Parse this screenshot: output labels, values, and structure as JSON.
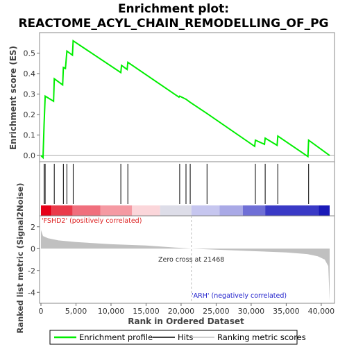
{
  "chart_data": {
    "type": "line",
    "title_line1": "Enrichment plot:",
    "title_line2": "REACTOME_ACYL_CHAIN_REMODELLING_OF_PG",
    "xlabel": "Rank in Ordered Dataset",
    "es_panel": {
      "ylabel": "Enrichment score (ES)",
      "ylim": [
        -0.03,
        0.6
      ],
      "yticks": [
        "0.0",
        "0.1",
        "0.2",
        "0.3",
        "0.4",
        "0.5"
      ],
      "ytick_values": [
        0.0,
        0.1,
        0.2,
        0.3,
        0.4,
        0.5
      ],
      "profile_color": "#00ee00",
      "profile": [
        {
          "x": 0,
          "y": 0.0
        },
        {
          "x": 300,
          "y": -0.01
        },
        {
          "x": 450,
          "y": 0.15
        },
        {
          "x": 600,
          "y": 0.29
        },
        {
          "x": 1800,
          "y": 0.265
        },
        {
          "x": 1900,
          "y": 0.375
        },
        {
          "x": 3100,
          "y": 0.345
        },
        {
          "x": 3200,
          "y": 0.43
        },
        {
          "x": 3500,
          "y": 0.425
        },
        {
          "x": 3700,
          "y": 0.51
        },
        {
          "x": 4500,
          "y": 0.49
        },
        {
          "x": 4600,
          "y": 0.56
        },
        {
          "x": 11400,
          "y": 0.405
        },
        {
          "x": 11500,
          "y": 0.44
        },
        {
          "x": 12300,
          "y": 0.42
        },
        {
          "x": 12400,
          "y": 0.455
        },
        {
          "x": 19700,
          "y": 0.285
        },
        {
          "x": 19800,
          "y": 0.29
        },
        {
          "x": 20700,
          "y": 0.275
        },
        {
          "x": 21300,
          "y": 0.26
        },
        {
          "x": 23700,
          "y": 0.205
        },
        {
          "x": 30500,
          "y": 0.045
        },
        {
          "x": 30600,
          "y": 0.075
        },
        {
          "x": 31900,
          "y": 0.055
        },
        {
          "x": 32000,
          "y": 0.085
        },
        {
          "x": 33700,
          "y": 0.05
        },
        {
          "x": 33800,
          "y": 0.095
        },
        {
          "x": 38100,
          "y": -0.005
        },
        {
          "x": 38200,
          "y": 0.075
        },
        {
          "x": 41200,
          "y": 0.0
        }
      ]
    },
    "hits": [
      450,
      600,
      1900,
      3200,
      3700,
      4600,
      11400,
      12400,
      19800,
      20700,
      21300,
      23700,
      30600,
      32000,
      33800,
      38200
    ],
    "heatmap_colors": [
      "#e60018",
      "#ea3a4a",
      "#f06f7d",
      "#f59aa3",
      "#fbd6da",
      "#dddde8",
      "#c6c6ef",
      "#a9a9e6",
      "#6f6fd6",
      "#3a3ac6",
      "#1a1ab8"
    ],
    "heatmap_bounds": [
      0,
      1500,
      4500,
      8500,
      13000,
      17000,
      21468,
      25500,
      28800,
      32000,
      39600,
      41200
    ],
    "metric_panel": {
      "ylabel": "Ranked list metric (Signal2Noise)",
      "ylim": [
        -5,
        3
      ],
      "yticks": [
        "2",
        "0",
        "-2",
        "-4"
      ],
      "ytick_values": [
        2,
        0,
        -2,
        -4
      ],
      "curve": [
        {
          "x": 0,
          "y": 1.7
        },
        {
          "x": 300,
          "y": 1.15
        },
        {
          "x": 1000,
          "y": 0.95
        },
        {
          "x": 2500,
          "y": 0.75
        },
        {
          "x": 5000,
          "y": 0.6
        },
        {
          "x": 10000,
          "y": 0.4
        },
        {
          "x": 15000,
          "y": 0.28
        },
        {
          "x": 21468,
          "y": 0.0
        },
        {
          "x": 25000,
          "y": -0.1
        },
        {
          "x": 30000,
          "y": -0.22
        },
        {
          "x": 35000,
          "y": -0.35
        },
        {
          "x": 38000,
          "y": -0.5
        },
        {
          "x": 39500,
          "y": -0.7
        },
        {
          "x": 40500,
          "y": -1.0
        },
        {
          "x": 41000,
          "y": -1.6
        },
        {
          "x": 41200,
          "y": -4.8
        }
      ],
      "zero_cross_label": "Zero cross at 21468",
      "zero_cross_x": 21468,
      "positive_label": "'FSHD2' (positively correlated)",
      "negative_label": "'ARH' (negatively correlated)",
      "positive_color": "#dd2222",
      "negative_color": "#2222cc"
    },
    "xlim": [
      0,
      41200
    ],
    "xticks": [
      "0",
      "5,000",
      "10,000",
      "15,000",
      "20,000",
      "25,000",
      "30,000",
      "35,000",
      "40,000"
    ],
    "xtick_values": [
      0,
      5000,
      10000,
      15000,
      20000,
      25000,
      30000,
      35000,
      40000
    ],
    "legend": {
      "items": [
        {
          "label": "Enrichment profile",
          "color": "#00ee00"
        },
        {
          "label": "Hits",
          "color": "#000000"
        },
        {
          "label": "Ranking metric scores",
          "color": "#c0c0c0"
        }
      ]
    }
  }
}
